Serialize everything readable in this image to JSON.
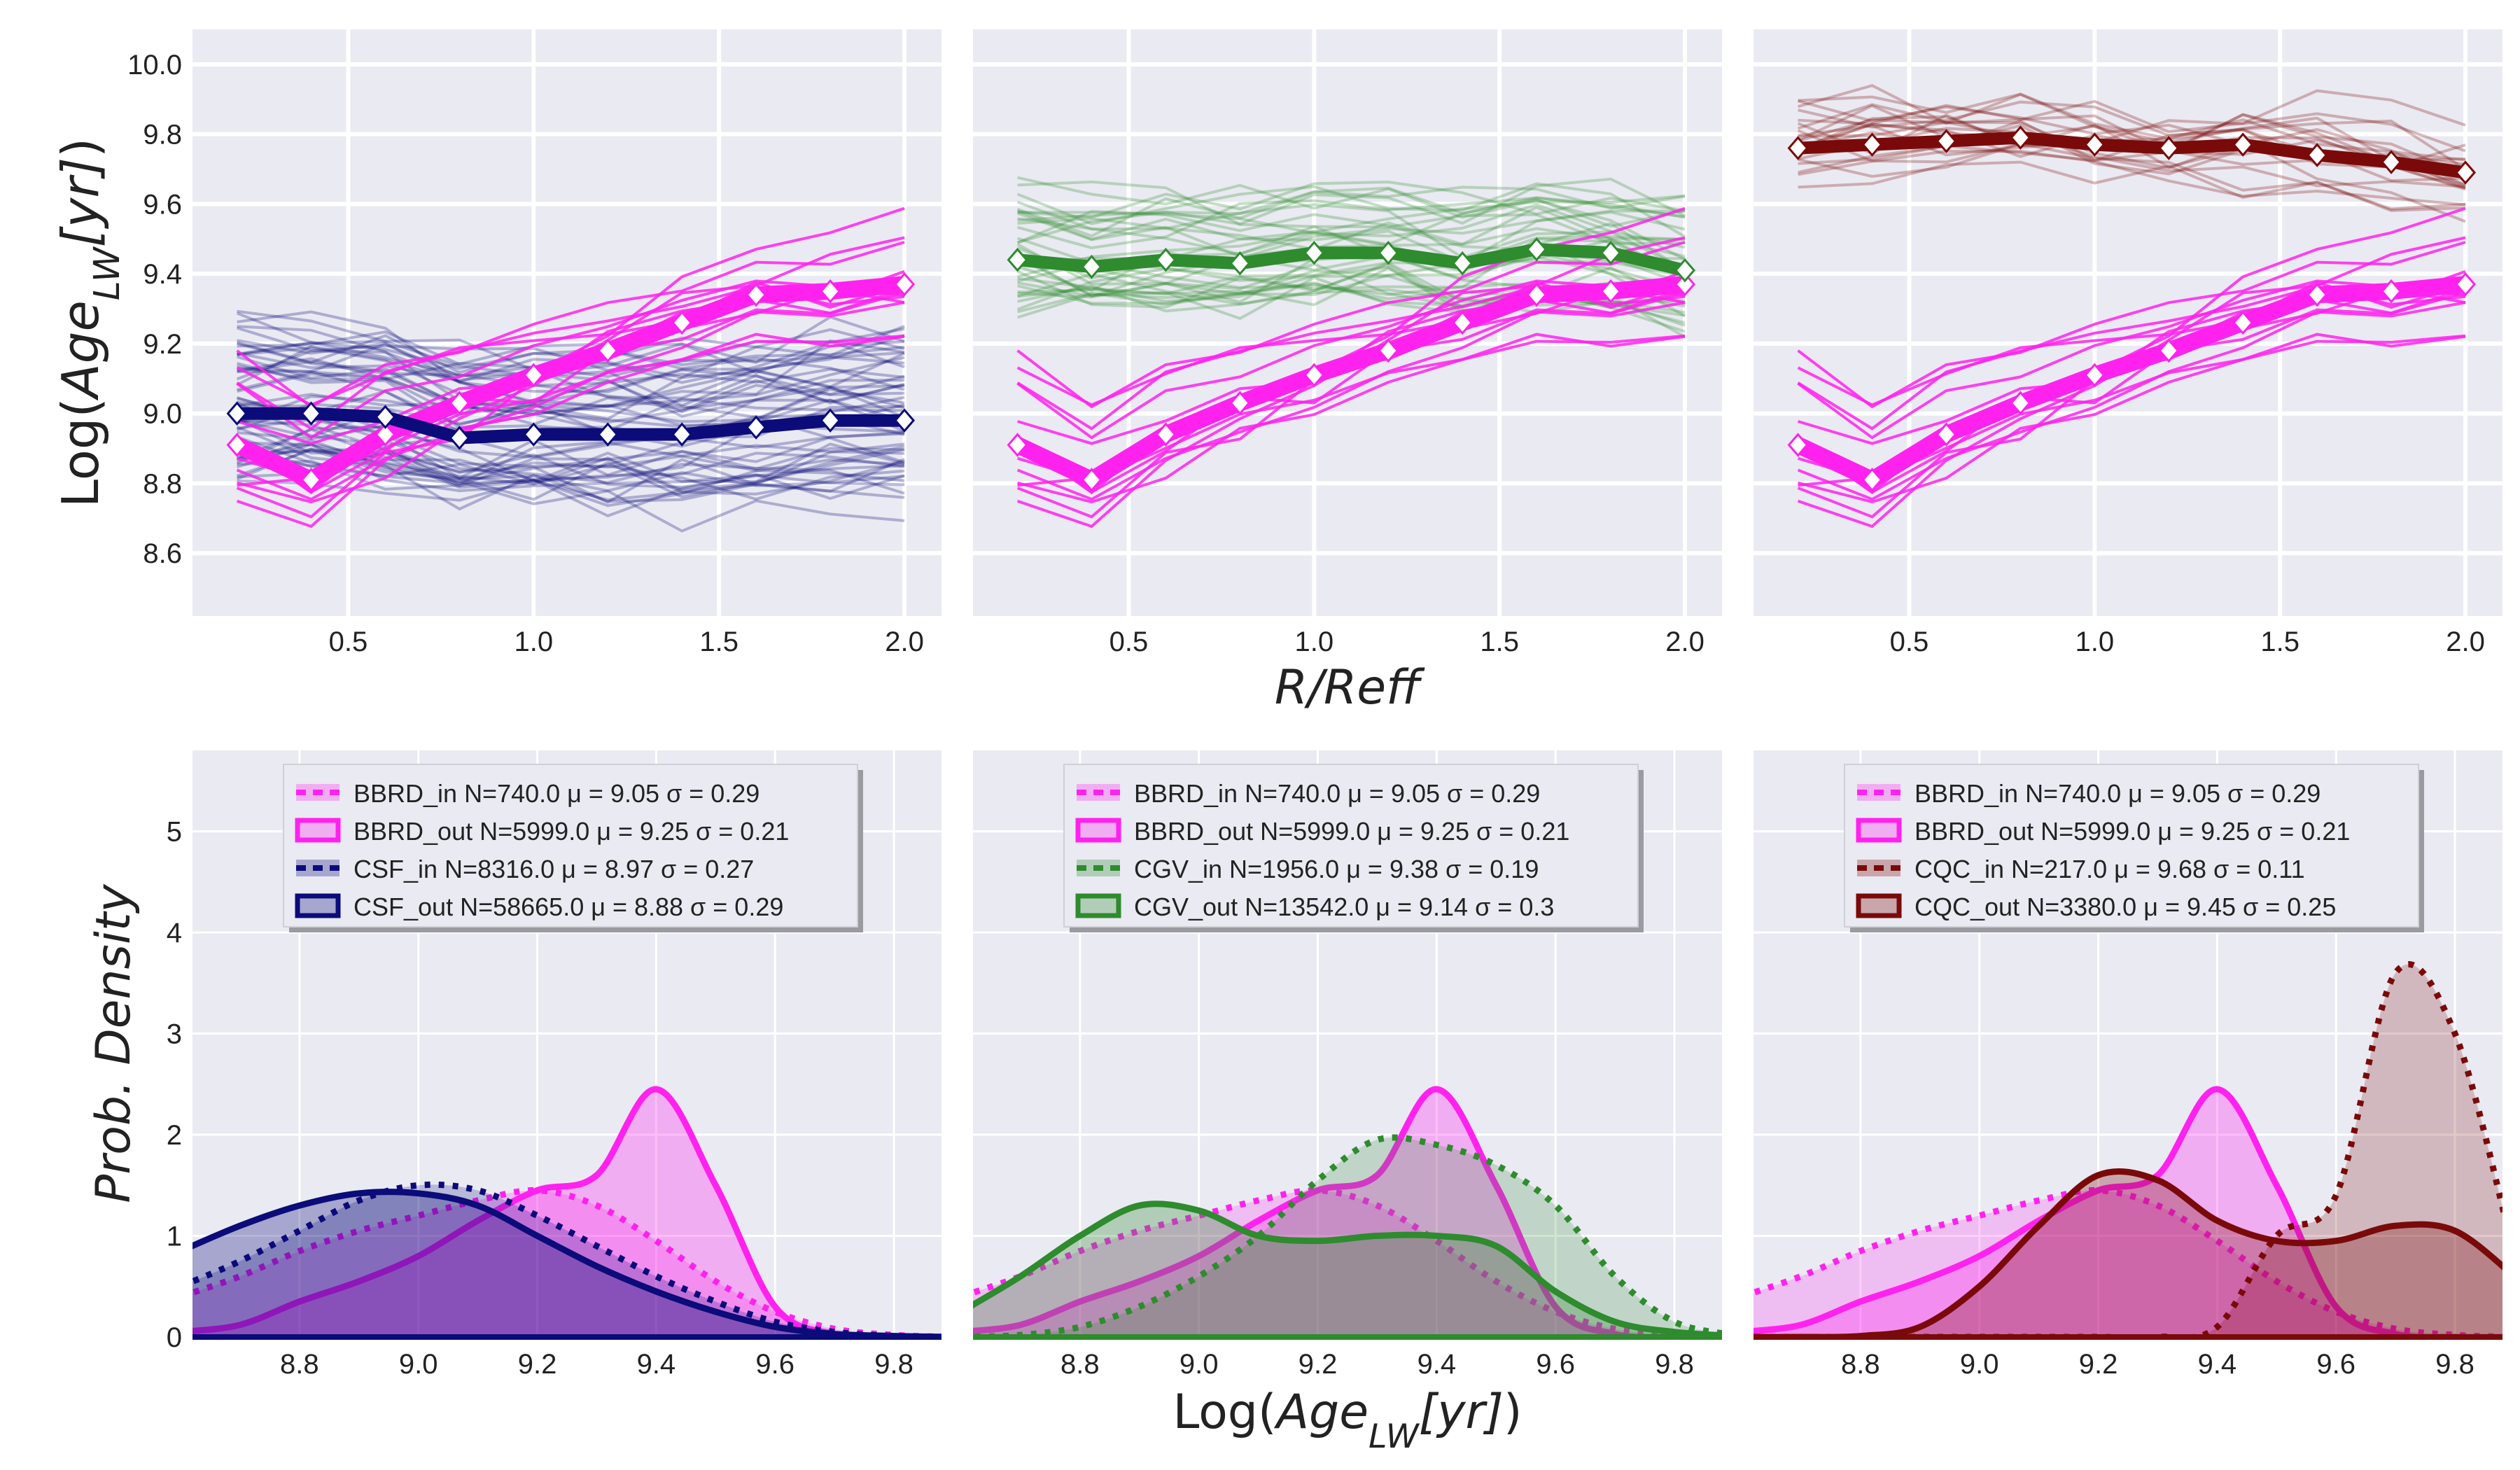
{
  "colors": {
    "panel_bg": "#eaeaf2",
    "grid": "#ffffff",
    "bbrd": "#ff22ee",
    "csf": "#0b0b7a",
    "cgv": "#2e8b2e",
    "cqc": "#7a0a0a"
  },
  "chart_data": [
    {
      "type": "line",
      "panel": "top-left",
      "ylabel": "Log(Age_LW[yr])",
      "xlabel": "",
      "xlim": [
        0.08,
        2.1
      ],
      "ylim": [
        8.42,
        10.1
      ],
      "xticks": [
        "0.5",
        "1.0",
        "1.5",
        "2.0"
      ],
      "yticks": [
        "8.6",
        "8.8",
        "9.0",
        "9.2",
        "9.4",
        "9.6",
        "9.8",
        "10.0"
      ],
      "grid": true,
      "x": [
        0.2,
        0.4,
        0.6,
        0.8,
        1.0,
        1.2,
        1.4,
        1.6,
        1.8,
        2.0
      ],
      "series": [
        {
          "name": "BBRD",
          "color": "#ff22ee",
          "values": [
            8.91,
            8.81,
            8.94,
            9.03,
            9.11,
            9.18,
            9.26,
            9.34,
            9.35,
            9.37
          ]
        },
        {
          "name": "CSF",
          "color": "#0b0b7a",
          "values": [
            9.0,
            9.0,
            8.99,
            8.93,
            8.94,
            8.94,
            8.94,
            8.96,
            8.98,
            8.98
          ]
        }
      ]
    },
    {
      "type": "line",
      "panel": "top-middle",
      "xlabel": "R/Reff",
      "xlim": [
        0.08,
        2.1
      ],
      "ylim": [
        8.42,
        10.1
      ],
      "xticks": [
        "0.5",
        "1.0",
        "1.5",
        "2.0"
      ],
      "grid": true,
      "x": [
        0.2,
        0.4,
        0.6,
        0.8,
        1.0,
        1.2,
        1.4,
        1.6,
        1.8,
        2.0
      ],
      "series": [
        {
          "name": "BBRD",
          "color": "#ff22ee",
          "values": [
            8.91,
            8.81,
            8.94,
            9.03,
            9.11,
            9.18,
            9.26,
            9.34,
            9.35,
            9.37
          ]
        },
        {
          "name": "CGV",
          "color": "#2e8b2e",
          "values": [
            9.44,
            9.42,
            9.44,
            9.43,
            9.46,
            9.46,
            9.43,
            9.47,
            9.46,
            9.41
          ]
        }
      ]
    },
    {
      "type": "line",
      "panel": "top-right",
      "xlim": [
        0.08,
        2.1
      ],
      "ylim": [
        8.42,
        10.1
      ],
      "xticks": [
        "0.5",
        "1.0",
        "1.5",
        "2.0"
      ],
      "grid": true,
      "x": [
        0.2,
        0.4,
        0.6,
        0.8,
        1.0,
        1.2,
        1.4,
        1.6,
        1.8,
        2.0
      ],
      "series": [
        {
          "name": "BBRD",
          "color": "#ff22ee",
          "values": [
            8.91,
            8.81,
            8.94,
            9.03,
            9.11,
            9.18,
            9.26,
            9.34,
            9.35,
            9.37
          ]
        },
        {
          "name": "CQC",
          "color": "#7a0a0a",
          "values": [
            9.76,
            9.77,
            9.78,
            9.79,
            9.77,
            9.76,
            9.77,
            9.74,
            9.72,
            9.69
          ]
        }
      ]
    },
    {
      "type": "area",
      "panel": "bottom-left",
      "ylabel": "Prob. Density",
      "xlim": [
        8.62,
        9.88
      ],
      "ylim": [
        0,
        5.8
      ],
      "xticks": [
        "8.8",
        "9.0",
        "9.2",
        "9.4",
        "9.6",
        "9.8"
      ],
      "yticks": [
        "0",
        "1",
        "2",
        "3",
        "4",
        "5"
      ],
      "legend_position": "top-center",
      "x": [
        8.6,
        8.7,
        8.8,
        8.9,
        9.0,
        9.1,
        9.2,
        9.3,
        9.4,
        9.5,
        9.6,
        9.7,
        9.8,
        9.9
      ],
      "series": [
        {
          "name": "BBRD_in N=740.0 μ = 9.05 σ = 0.29",
          "style": "dotted",
          "color": "#ff22ee",
          "values": [
            0.4,
            0.6,
            0.85,
            1.05,
            1.2,
            1.35,
            1.45,
            1.3,
            0.95,
            0.55,
            0.25,
            0.08,
            0.02,
            0
          ]
        },
        {
          "name": "BBRD_out N=5999.0 μ = 9.25 σ = 0.21",
          "style": "solid",
          "color": "#ff22ee",
          "values": [
            0.05,
            0.12,
            0.35,
            0.55,
            0.8,
            1.15,
            1.45,
            1.6,
            2.45,
            1.5,
            0.3,
            0.03,
            0,
            0
          ]
        },
        {
          "name": "CSF_in N=8316.0 μ = 8.97 σ = 0.27",
          "style": "dotted",
          "color": "#0b0b7a",
          "values": [
            0.5,
            0.75,
            1.05,
            1.35,
            1.5,
            1.45,
            1.2,
            0.9,
            0.6,
            0.35,
            0.15,
            0.05,
            0.01,
            0
          ]
        },
        {
          "name": "CSF_out N=58665.0 μ = 8.88 σ = 0.29",
          "style": "solid",
          "color": "#0b0b7a",
          "values": [
            0.85,
            1.1,
            1.3,
            1.42,
            1.42,
            1.3,
            1.0,
            0.7,
            0.45,
            0.25,
            0.1,
            0.03,
            0.01,
            0
          ]
        }
      ]
    },
    {
      "type": "area",
      "panel": "bottom-middle",
      "xlabel": "Log(Age_LW[yr])",
      "xlim": [
        8.62,
        9.88
      ],
      "ylim": [
        0,
        5.8
      ],
      "xticks": [
        "8.8",
        "9.0",
        "9.2",
        "9.4",
        "9.6",
        "9.8"
      ],
      "legend_position": "top-center",
      "x": [
        8.6,
        8.7,
        8.8,
        8.9,
        9.0,
        9.1,
        9.2,
        9.3,
        9.4,
        9.5,
        9.6,
        9.7,
        9.8,
        9.9
      ],
      "series": [
        {
          "name": "BBRD_in N=740.0 μ = 9.05 σ = 0.29",
          "style": "dotted",
          "color": "#ff22ee",
          "values": [
            0.4,
            0.6,
            0.85,
            1.05,
            1.2,
            1.35,
            1.45,
            1.3,
            0.95,
            0.55,
            0.25,
            0.08,
            0.02,
            0
          ]
        },
        {
          "name": "BBRD_out N=5999.0 μ = 9.25 σ = 0.21",
          "style": "solid",
          "color": "#ff22ee",
          "values": [
            0.05,
            0.12,
            0.35,
            0.55,
            0.8,
            1.15,
            1.45,
            1.6,
            2.45,
            1.5,
            0.3,
            0.03,
            0,
            0
          ]
        },
        {
          "name": "CGV_in N=1956.0 μ = 9.38 σ = 0.19",
          "style": "dotted",
          "color": "#2e8b2e",
          "values": [
            0,
            0.02,
            0.1,
            0.3,
            0.6,
            1.0,
            1.55,
            1.95,
            1.9,
            1.7,
            1.3,
            0.6,
            0.15,
            0.02
          ]
        },
        {
          "name": "CGV_out N=13542.0 μ = 9.14 σ = 0.3",
          "style": "solid",
          "color": "#2e8b2e",
          "values": [
            0.25,
            0.6,
            1.0,
            1.3,
            1.25,
            1.0,
            0.95,
            1.0,
            1.0,
            0.9,
            0.45,
            0.15,
            0.05,
            0.01
          ]
        }
      ]
    },
    {
      "type": "area",
      "panel": "bottom-right",
      "xlim": [
        8.62,
        9.88
      ],
      "ylim": [
        0,
        5.8
      ],
      "xticks": [
        "8.8",
        "9.0",
        "9.2",
        "9.4",
        "9.6",
        "9.8"
      ],
      "legend_position": "top-center",
      "x": [
        8.6,
        8.7,
        8.8,
        8.9,
        9.0,
        9.1,
        9.2,
        9.3,
        9.4,
        9.5,
        9.6,
        9.7,
        9.8,
        9.9
      ],
      "series": [
        {
          "name": "BBRD_in N=740.0 μ = 9.05 σ = 0.29",
          "style": "dotted",
          "color": "#ff22ee",
          "values": [
            0.4,
            0.6,
            0.85,
            1.05,
            1.2,
            1.35,
            1.45,
            1.3,
            0.95,
            0.55,
            0.25,
            0.08,
            0.02,
            0
          ]
        },
        {
          "name": "BBRD_out N=5999.0 μ = 9.25 σ = 0.21",
          "style": "solid",
          "color": "#ff22ee",
          "values": [
            0.05,
            0.12,
            0.35,
            0.55,
            0.8,
            1.15,
            1.45,
            1.6,
            2.45,
            1.5,
            0.3,
            0.03,
            0,
            0
          ]
        },
        {
          "name": "CQC_in N=217.0 μ = 9.68 σ = 0.11",
          "style": "dotted",
          "color": "#7a0a0a",
          "values": [
            0,
            0,
            0,
            0,
            0,
            0,
            0,
            0,
            0.1,
            1.0,
            1.4,
            3.6,
            3.0,
            0.8
          ]
        },
        {
          "name": "CQC_out N=3380.0 μ = 9.45 σ = 0.25",
          "style": "solid",
          "color": "#7a0a0a",
          "values": [
            0,
            0,
            0.01,
            0.1,
            0.5,
            1.1,
            1.6,
            1.55,
            1.15,
            0.95,
            0.95,
            1.1,
            1.05,
            0.6
          ]
        }
      ]
    }
  ]
}
